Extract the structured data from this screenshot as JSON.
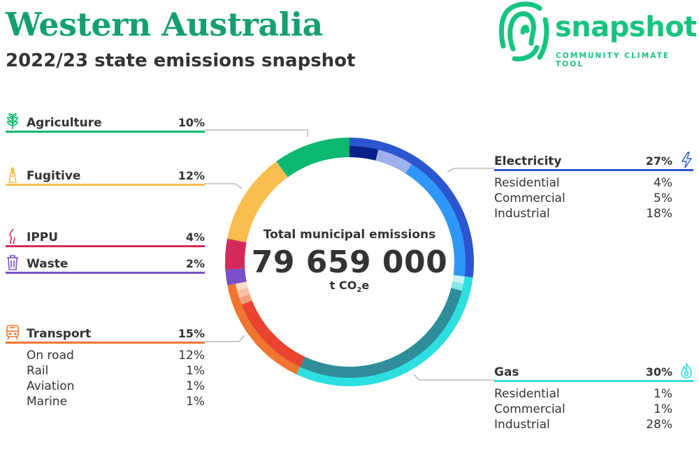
{
  "header": {
    "title": "Western Australia",
    "subtitle": "2022/23 state emissions snapshot"
  },
  "logo": {
    "word": "snapshot",
    "tagline": "COMMUNITY CLIMATE TOOL",
    "color": "#16c47f"
  },
  "center": {
    "label": "Total municipal emissions",
    "total": "79 659 000",
    "unit_prefix": "t CO",
    "unit_sub": "2",
    "unit_suffix": "e"
  },
  "sectors_left": [
    {
      "key": "agriculture",
      "name": "Agriculture",
      "pct": "10%",
      "color": "#0db870",
      "icon": "plant-icon"
    },
    {
      "key": "fugitive",
      "name": "Fugitive",
      "pct": "12%",
      "color": "#f9be4d",
      "icon": "flare-icon"
    },
    {
      "key": "ippu",
      "name": "IPPU",
      "pct": "4%",
      "color": "#d52b5c",
      "icon": "smoke-icon"
    },
    {
      "key": "waste",
      "name": "Waste",
      "pct": "2%",
      "color": "#7950c8",
      "icon": "bin-icon"
    },
    {
      "key": "transport",
      "name": "Transport",
      "pct": "15%",
      "color": "#f07530",
      "icon": "train-icon",
      "subs": [
        {
          "label": "On road",
          "pct": "12%"
        },
        {
          "label": "Rail",
          "pct": "1%"
        },
        {
          "label": "Aviation",
          "pct": "1%"
        },
        {
          "label": "Marine",
          "pct": "1%"
        }
      ]
    }
  ],
  "sectors_right": [
    {
      "key": "electricity",
      "name": "Electricity",
      "pct": "27%",
      "color": "#2b56cf",
      "icon": "lightning-icon",
      "subs": [
        {
          "label": "Residential",
          "pct": "4%"
        },
        {
          "label": "Commercial",
          "pct": "5%"
        },
        {
          "label": "Industrial",
          "pct": "18%"
        }
      ]
    },
    {
      "key": "gas",
      "name": "Gas",
      "pct": "30%",
      "color": "#2ddfe0",
      "icon": "flame-icon",
      "subs": [
        {
          "label": "Residential",
          "pct": "1%"
        },
        {
          "label": "Commercial",
          "pct": "1%"
        },
        {
          "label": "Industrial",
          "pct": "28%"
        }
      ]
    }
  ],
  "chart_data": {
    "type": "pie",
    "variant": "donut",
    "title": "",
    "series": [
      {
        "name": "Electricity",
        "value": 27,
        "color": "#2b56cf",
        "sub": [
          {
            "name": "Residential",
            "value": 4,
            "color": "#0b1e8a"
          },
          {
            "name": "Commercial",
            "value": 5,
            "color": "#9fb0ef"
          },
          {
            "name": "Industrial",
            "value": 18,
            "color": "#2f97fa"
          }
        ]
      },
      {
        "name": "Gas",
        "value": 30,
        "color": "#2ddfe0",
        "sub": [
          {
            "name": "Residential",
            "value": 1,
            "color": "#cdf3f3"
          },
          {
            "name": "Commercial",
            "value": 1,
            "color": "#88e8e8"
          },
          {
            "name": "Industrial",
            "value": 28,
            "color": "#2f8e9a"
          }
        ]
      },
      {
        "name": "Transport",
        "value": 15,
        "color": "#f07530",
        "sub": [
          {
            "name": "On road",
            "value": 12,
            "color": "#ea4430"
          },
          {
            "name": "Rail",
            "value": 1,
            "color": "#f4a07e"
          },
          {
            "name": "Aviation",
            "value": 1,
            "color": "#f8c1a7"
          },
          {
            "name": "Marine",
            "value": 1,
            "color": "#fbdcc8"
          }
        ]
      },
      {
        "name": "Waste",
        "value": 2,
        "color": "#7950c8"
      },
      {
        "name": "IPPU",
        "value": 4,
        "color": "#d52b5c"
      },
      {
        "name": "Fugitive",
        "value": 12,
        "color": "#f9be4d"
      },
      {
        "name": "Agriculture",
        "value": 10,
        "color": "#0db870"
      }
    ]
  }
}
